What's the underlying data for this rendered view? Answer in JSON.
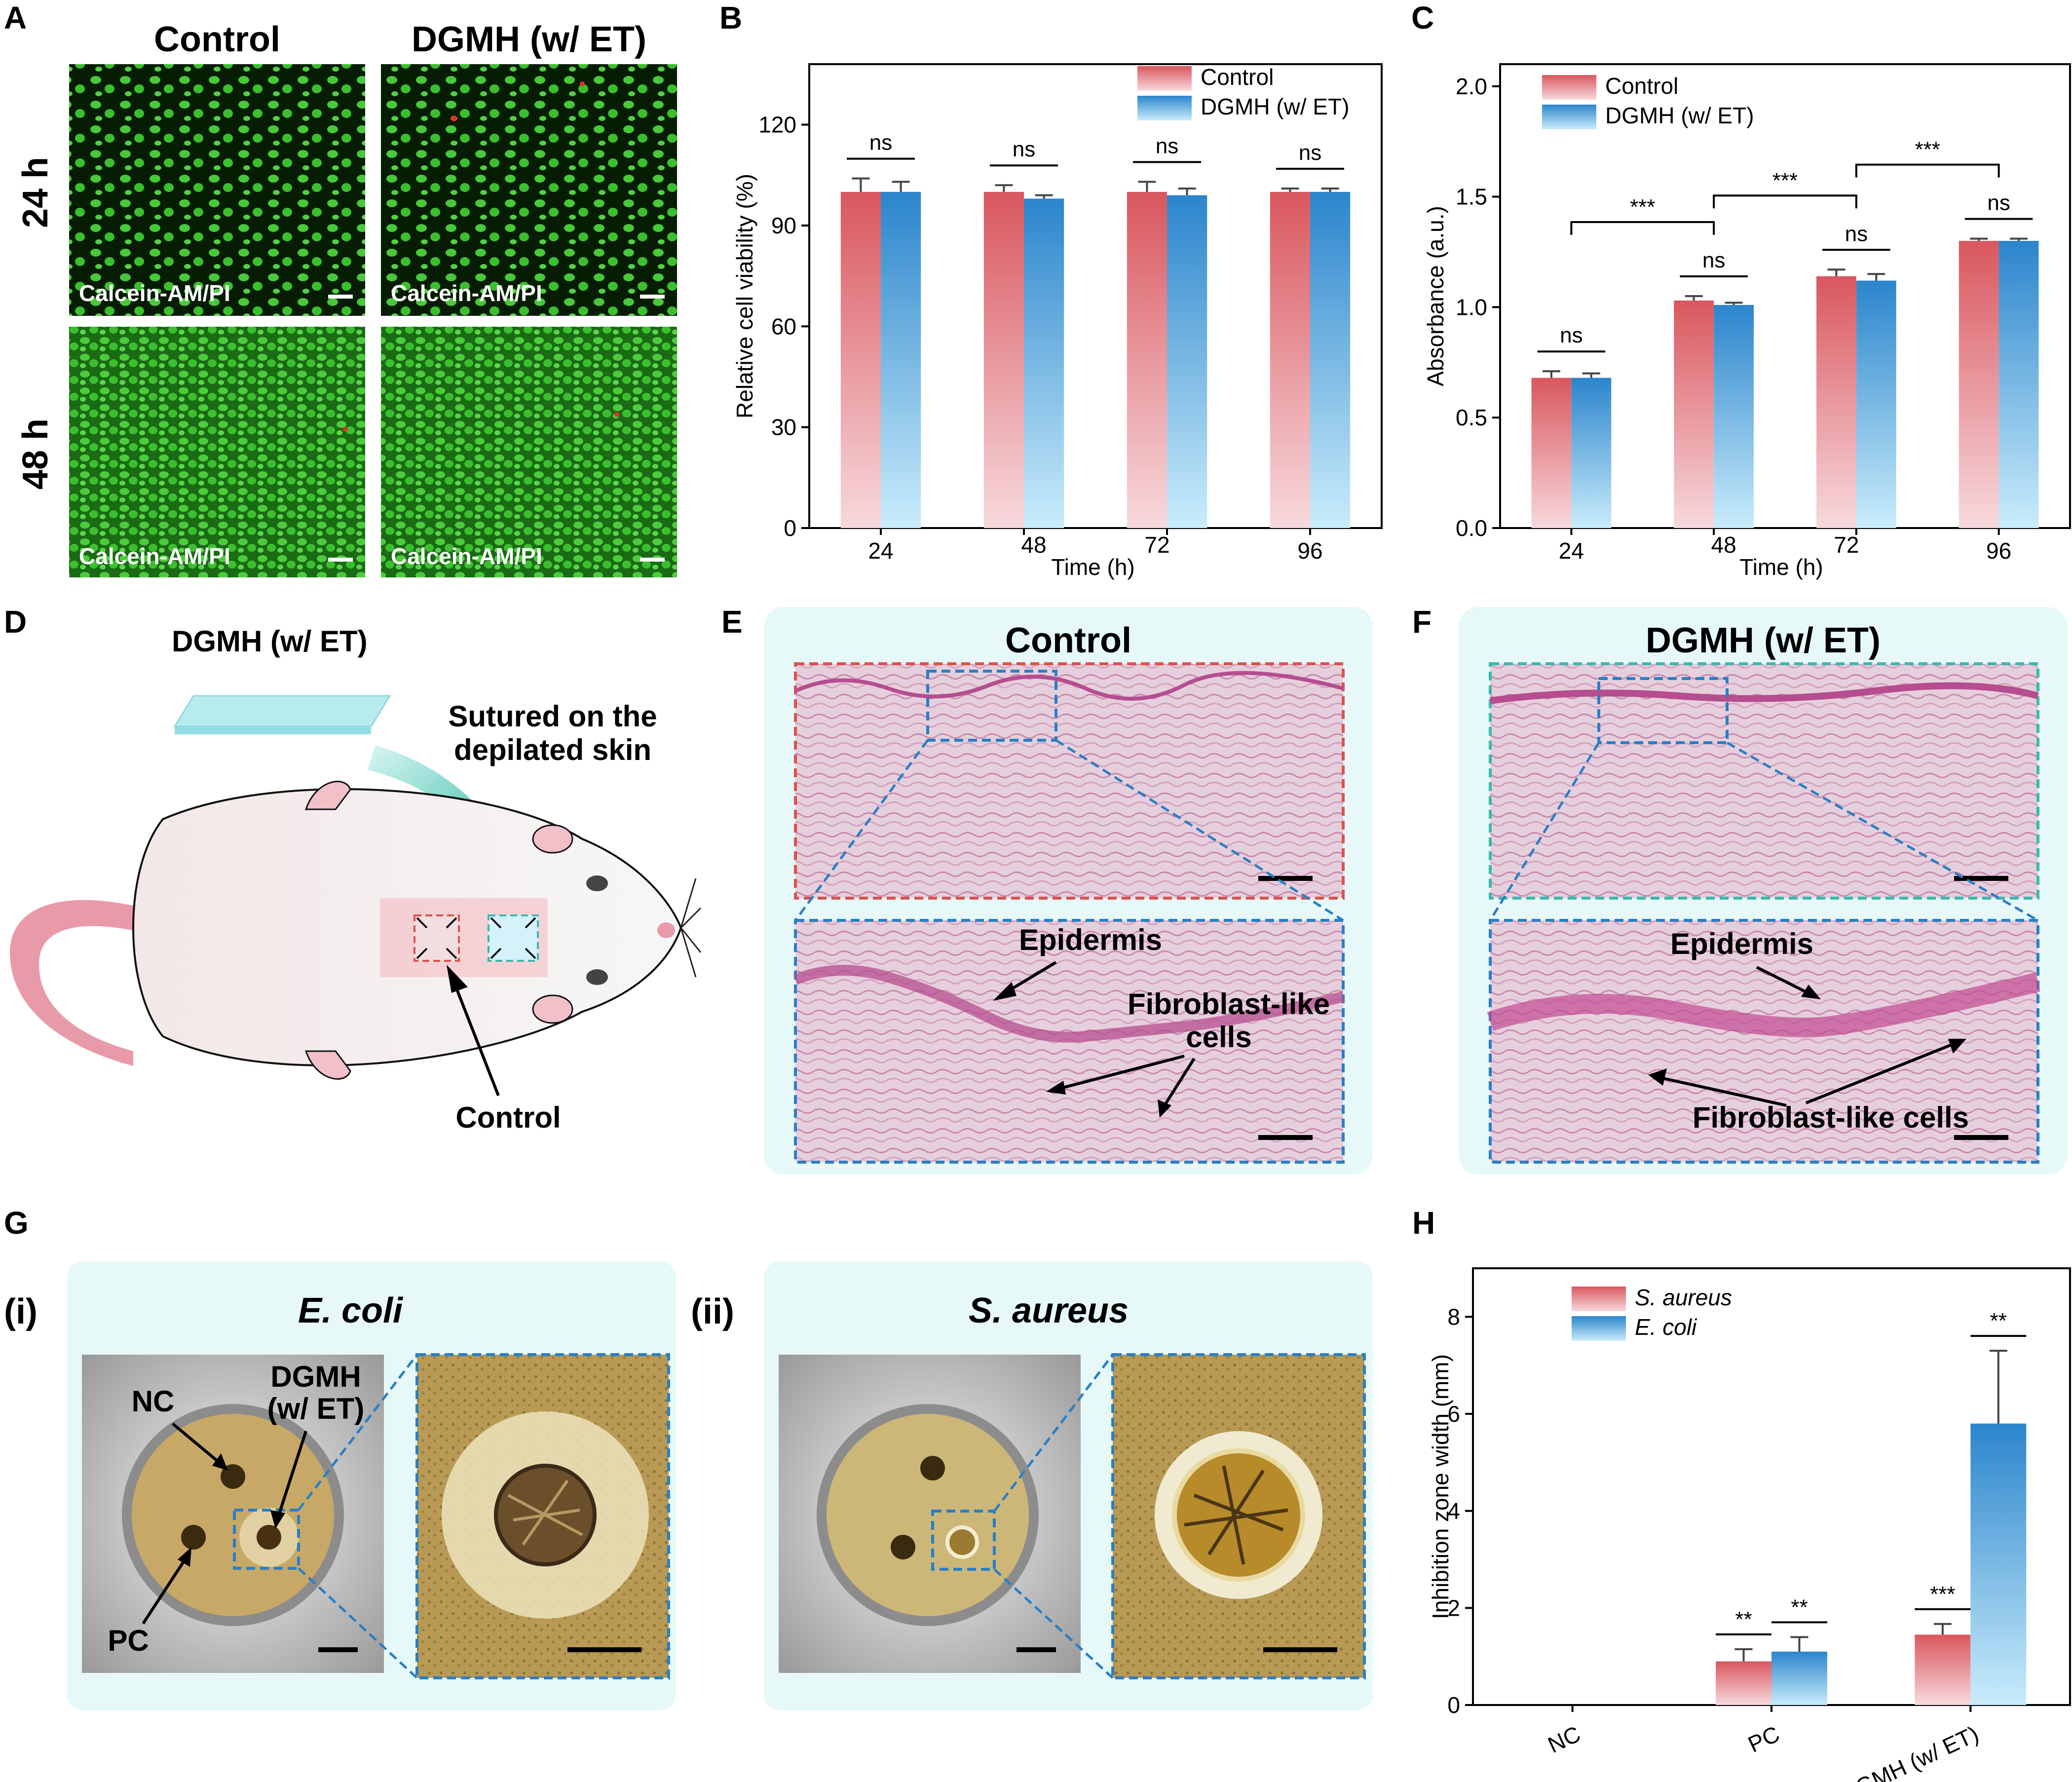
{
  "panel_letters": {
    "A": "A",
    "B": "B",
    "C": "C",
    "D": "D",
    "E": "E",
    "F": "F",
    "G": "G",
    "H": "H"
  },
  "panel_a": {
    "col_headers": [
      "Control",
      "DGMH (w/ ET)"
    ],
    "row_headers": [
      "24 h",
      "48 h"
    ],
    "stain_label": "Calcein-AM/PI"
  },
  "panel_d": {
    "material_label": "DGMH (w/ ET)",
    "instruction_line1": "Sutured on the",
    "instruction_line2": "depilated skin",
    "control_label": "Control"
  },
  "panel_e": {
    "title": "Control",
    "epidermis": "Epidermis",
    "fibro_line1": "Fibroblast-like",
    "fibro_line2": "cells"
  },
  "panel_f": {
    "title": "DGMH (w/ ET)",
    "epidermis": "Epidermis",
    "fibro": "Fibroblast-like cells"
  },
  "panel_g": {
    "sub_i": "(i)",
    "sub_ii": "(ii)",
    "title_i": "E. coli",
    "title_ii": "S. aureus",
    "nc": "NC",
    "pc": "PC",
    "dgmh_line1": "DGMH",
    "dgmh_line2": "(w/ ET)"
  },
  "colors": {
    "red_top": "#d9575e",
    "red_bottom": "#f7d9dd",
    "blue_top": "#2b85cc",
    "blue_bottom": "#c9ecfb",
    "panel_bg": "#e6f8f8",
    "dash_red": "#d9534f",
    "dash_blue": "#2a7fc4",
    "dash_teal": "#3bb9ad"
  },
  "chart_data": [
    {
      "panel": "B",
      "type": "bar",
      "xlabel": "Time (h)",
      "ylabel": "Relative cell viability (%)",
      "categories": [
        "24",
        "48",
        "72",
        "96"
      ],
      "ylim": [
        0,
        138
      ],
      "yticks": [
        0,
        30,
        60,
        90,
        120
      ],
      "legend": "top-right",
      "series": [
        {
          "name": "Control",
          "values": [
            100,
            100,
            100,
            100
          ],
          "errors": [
            4,
            2,
            3,
            1
          ]
        },
        {
          "name": "DGMH (w/ ET)",
          "values": [
            100,
            98,
            99,
            100
          ],
          "errors": [
            3,
            1,
            2,
            1
          ]
        }
      ],
      "significance": [
        {
          "category": "24",
          "label": "ns"
        },
        {
          "category": "48",
          "label": "ns"
        },
        {
          "category": "72",
          "label": "ns"
        },
        {
          "category": "96",
          "label": "ns"
        }
      ]
    },
    {
      "panel": "C",
      "type": "bar",
      "xlabel": "Time (h)",
      "ylabel": "Absorbance (a.u.)",
      "categories": [
        "24",
        "48",
        "72",
        "96"
      ],
      "ylim": [
        0,
        2.1
      ],
      "yticks": [
        "0.0",
        "0.5",
        "1.0",
        "1.5",
        "2.0"
      ],
      "legend": "top-left",
      "series": [
        {
          "name": "Control",
          "values": [
            0.68,
            1.03,
            1.14,
            1.3
          ],
          "errors": [
            0.03,
            0.02,
            0.03,
            0.01
          ]
        },
        {
          "name": "DGMH (w/ ET)",
          "values": [
            0.68,
            1.01,
            1.12,
            1.3
          ],
          "errors": [
            0.02,
            0.01,
            0.03,
            0.01
          ]
        }
      ],
      "significance": [
        {
          "category": "24",
          "label": "ns"
        },
        {
          "category": "48",
          "label": "ns"
        },
        {
          "category": "72",
          "label": "ns"
        },
        {
          "category": "96",
          "label": "ns"
        }
      ],
      "brackets": [
        {
          "from": "24",
          "to": "48",
          "label": "***"
        },
        {
          "from": "48",
          "to": "72",
          "label": "***"
        },
        {
          "from": "72",
          "to": "96",
          "label": "***"
        }
      ]
    },
    {
      "panel": "H",
      "type": "bar",
      "xlabel": "",
      "ylabel": "Inhibition zone width (mm)",
      "categories": [
        "NC",
        "PC",
        "DGMH (w/ ET)"
      ],
      "ylim": [
        0,
        9
      ],
      "yticks": [
        0,
        2,
        4,
        6,
        8
      ],
      "legend": "top-left",
      "series": [
        {
          "name": "S. aureus",
          "values": [
            0,
            0.9,
            1.45
          ],
          "errors": [
            0,
            0.25,
            0.22
          ]
        },
        {
          "name": "E. coli",
          "values": [
            0,
            1.1,
            5.8
          ],
          "errors": [
            0,
            0.3,
            1.5
          ]
        }
      ],
      "significance": [
        {
          "category": "PC",
          "series": 0,
          "label": "**"
        },
        {
          "category": "PC",
          "series": 1,
          "label": "**"
        },
        {
          "category": "DGMH (w/ ET)",
          "series": 0,
          "label": "***"
        },
        {
          "category": "DGMH (w/ ET)",
          "series": 1,
          "label": "**"
        }
      ]
    }
  ]
}
